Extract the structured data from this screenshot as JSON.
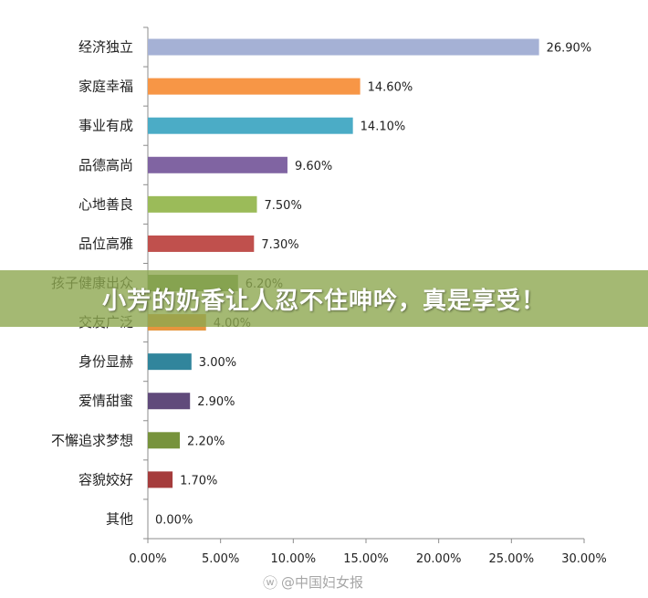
{
  "banner": {
    "text": "小芳的奶香让人忍不住呻吟，真是享受！"
  },
  "watermark": {
    "icon": "weibo-icon",
    "text": "@中国妇女报"
  },
  "chart_data": {
    "type": "bar",
    "orientation": "horizontal",
    "categories": [
      "经济独立",
      "家庭幸福",
      "事业有成",
      "品德高尚",
      "心地善良",
      "品位高雅",
      "孩子健康出众",
      "交友广泛",
      "身份显赫",
      "爱情甜蜜",
      "不懈追求梦想",
      "容貌姣好",
      "其他"
    ],
    "values": [
      26.9,
      14.6,
      14.1,
      9.6,
      7.5,
      7.3,
      6.2,
      4.0,
      3.0,
      2.9,
      2.2,
      1.7,
      0.0
    ],
    "value_labels": [
      "26.90%",
      "14.60%",
      "14.10%",
      "9.60%",
      "7.50%",
      "7.30%",
      "6.20%",
      "4.00%",
      "3.00%",
      "2.90%",
      "2.20%",
      "1.70%",
      "0.00%"
    ],
    "colors": [
      "#a5b1d5",
      "#f79646",
      "#4bacc6",
      "#8064a2",
      "#9bbb59",
      "#c0504d",
      "#6b8f4f",
      "#e6953e",
      "#31859c",
      "#604a7b",
      "#77933c",
      "#a53c3c",
      "#4f81bd"
    ],
    "xlim": [
      0,
      30
    ],
    "xticks": [
      0,
      5,
      10,
      15,
      20,
      25,
      30
    ],
    "xtick_labels": [
      "0.00%",
      "5.00%",
      "10.00%",
      "15.00%",
      "20.00%",
      "25.00%",
      "30.00%"
    ],
    "title": "",
    "xlabel": "",
    "ylabel": "",
    "grid": false,
    "legend": "none"
  }
}
